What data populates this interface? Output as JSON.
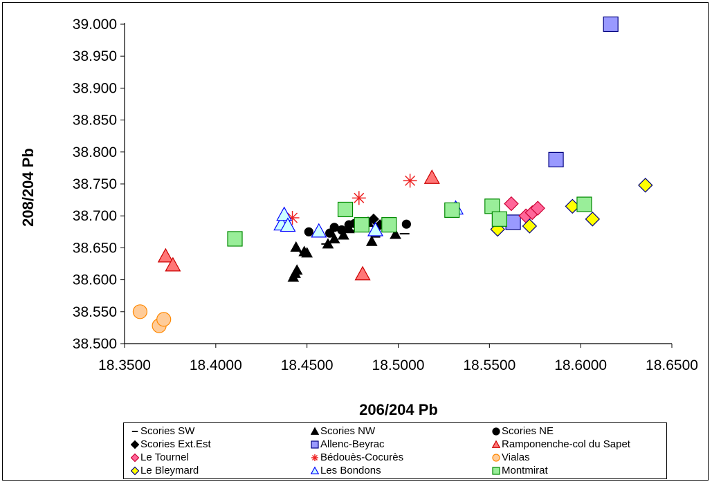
{
  "chart_data": {
    "type": "scatter",
    "xlabel": "206/204 Pb",
    "ylabel": "208/204 Pb",
    "xlim": [
      18.35,
      18.65
    ],
    "ylim": [
      38.5,
      39.0
    ],
    "x_ticks": [
      "18.3500",
      "18.4000",
      "18.4500",
      "18.5000",
      "18.5500",
      "18.6000",
      "18.6500"
    ],
    "y_ticks": [
      "38.500",
      "38.550",
      "38.600",
      "38.650",
      "38.700",
      "38.750",
      "38.800",
      "38.850",
      "38.900",
      "38.950",
      "39.000"
    ],
    "grid": false,
    "legend_position": "bottom",
    "series": [
      {
        "name": "Scories SW",
        "marker": "dash",
        "color": "#000000",
        "points": [
          [
            18.4485,
            38.643
          ],
          [
            18.4605,
            38.656
          ],
          [
            18.4795,
            38.69
          ],
          [
            18.4875,
            38.667
          ],
          [
            18.5035,
            38.672
          ]
        ]
      },
      {
        "name": "Scories NW",
        "marker": "triangle-filled",
        "color": "#000000",
        "points": [
          [
            18.4425,
            38.604
          ],
          [
            18.4435,
            38.61
          ],
          [
            18.4445,
            38.615
          ],
          [
            18.444,
            38.651
          ],
          [
            18.4485,
            38.644
          ],
          [
            18.45,
            38.642
          ],
          [
            18.4615,
            38.656
          ],
          [
            18.465,
            38.664
          ],
          [
            18.47,
            38.67
          ],
          [
            18.473,
            38.68
          ],
          [
            18.478,
            38.682
          ],
          [
            18.4855,
            38.66
          ],
          [
            18.4985,
            38.671
          ],
          [
            18.4835,
            38.69
          ]
        ]
      },
      {
        "name": "Scories NE",
        "marker": "circle-filled",
        "color": "#000000",
        "points": [
          [
            18.451,
            38.675
          ],
          [
            18.4625,
            38.673
          ],
          [
            18.465,
            38.682
          ],
          [
            18.469,
            38.678
          ],
          [
            18.473,
            38.686
          ],
          [
            18.476,
            38.688
          ],
          [
            18.5045,
            38.687
          ]
        ]
      },
      {
        "name": "Scories Ext.Est",
        "marker": "diamond-filled",
        "color": "#000000",
        "points": [
          [
            18.4865,
            38.695
          ],
          [
            18.49,
            38.686
          ]
        ]
      },
      {
        "name": "Allenc-Beyrac",
        "marker": "square",
        "color": "#9999ff",
        "points": [
          [
            18.6165,
            39.0
          ],
          [
            18.5865,
            38.788
          ],
          [
            18.563,
            38.69
          ]
        ]
      },
      {
        "name": "Ramponenche-col du Sapet",
        "marker": "triangle",
        "color": "#ff7777",
        "points": [
          [
            18.3725,
            38.637
          ],
          [
            18.3765,
            38.623
          ],
          [
            18.4805,
            38.609
          ],
          [
            18.5185,
            38.76
          ]
        ]
      },
      {
        "name": "Le Tournel",
        "marker": "diamond",
        "color": "#ff6699",
        "points": [
          [
            18.562,
            38.719
          ],
          [
            18.57,
            38.7
          ],
          [
            18.5735,
            38.705
          ],
          [
            18.5765,
            38.712
          ]
        ]
      },
      {
        "name": "Bédouès-Cocurès",
        "marker": "asterisk",
        "color": "#ee2222",
        "points": [
          [
            18.442,
            38.697
          ],
          [
            18.4785,
            38.728
          ],
          [
            18.5065,
            38.755
          ]
        ]
      },
      {
        "name": "Vialas",
        "marker": "circle",
        "color": "#ffcc99",
        "points": [
          [
            18.3585,
            38.55
          ],
          [
            18.369,
            38.528
          ],
          [
            18.3715,
            38.538
          ]
        ]
      },
      {
        "name": "Le Bleymard",
        "marker": "diamond",
        "color": "#ffff00",
        "points": [
          [
            18.5545,
            38.679
          ],
          [
            18.572,
            38.684
          ],
          [
            18.5955,
            38.715
          ],
          [
            18.6065,
            38.695
          ],
          [
            18.6355,
            38.748
          ]
        ]
      },
      {
        "name": "Les Bondons",
        "marker": "triangle",
        "color": "#ccffff",
        "points": [
          [
            18.436,
            38.687
          ],
          [
            18.4375,
            38.702
          ],
          [
            18.4395,
            38.685
          ],
          [
            18.4565,
            38.676
          ],
          [
            18.4875,
            38.678
          ],
          [
            18.5315,
            38.712
          ]
        ]
      },
      {
        "name": "Montmirat",
        "marker": "square",
        "color": "#99ee99",
        "points": [
          [
            18.4105,
            38.664
          ],
          [
            18.471,
            38.71
          ],
          [
            18.48,
            38.686
          ],
          [
            18.495,
            38.686
          ],
          [
            18.5295,
            38.709
          ],
          [
            18.5515,
            38.715
          ],
          [
            18.5555,
            38.695
          ],
          [
            18.602,
            38.718
          ]
        ]
      }
    ]
  }
}
